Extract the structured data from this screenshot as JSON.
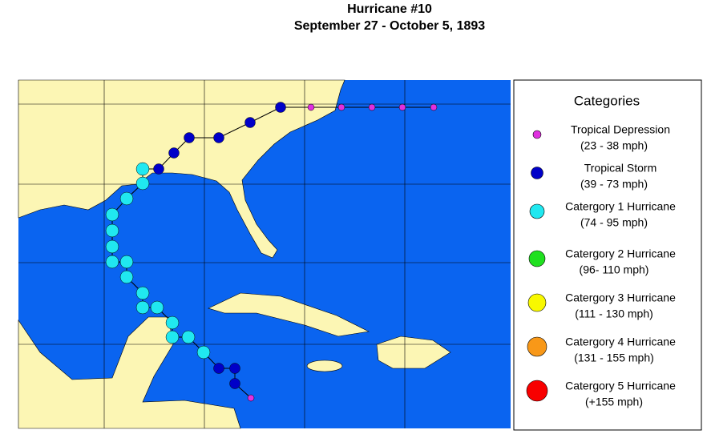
{
  "title": "Hurricane #10",
  "subtitle": "September 27 - October 5, 1893",
  "legend": {
    "title": "Categories",
    "items": [
      {
        "label": "Tropical Depression",
        "range": "(23 - 38 mph)",
        "color": "#e030e0"
      },
      {
        "label": "Tropical Storm",
        "range": "(39 - 73 mph)",
        "color": "#0000c8"
      },
      {
        "label": "Catergory 1 Hurricane",
        "range": "(74 - 95 mph)",
        "color": "#20e8f0"
      },
      {
        "label": "Catergory 2 Hurricane",
        "range": "(96- 110 mph)",
        "color": "#20e020"
      },
      {
        "label": "Catergory 3 Hurricane",
        "range": "(111 - 130 mph)",
        "color": "#f8f800"
      },
      {
        "label": "Catergory 4 Hurricane",
        "range": "(131 - 155 mph)",
        "color": "#f89818"
      },
      {
        "label": "Catergory 5 Hurricane",
        "range": "(+155 mph)",
        "color": "#f80000"
      }
    ]
  }
}
